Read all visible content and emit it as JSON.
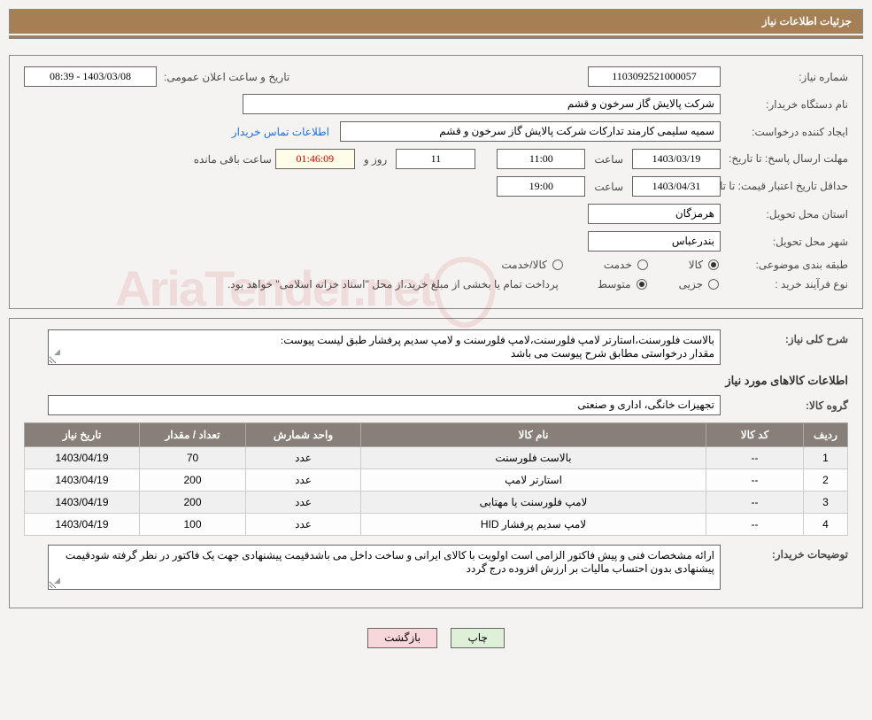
{
  "header": {
    "title": "جزئیات اطلاعات نیاز"
  },
  "need": {
    "number_label": "شماره نیاز:",
    "number": "1103092521000057",
    "announce_label": "تاریخ و ساعت اعلان عمومی:",
    "announce": "1403/03/08 - 08:39",
    "buyer_org_label": "نام دستگاه خریدار:",
    "buyer_org": "شرکت پالایش گاز سرخون و قشم",
    "requester_label": "ایجاد کننده درخواست:",
    "requester": "سمیه سلیمی کارمند تدارکات شرکت پالایش گاز سرخون و قشم",
    "contact_link": "اطلاعات تماس خریدار",
    "reply_deadline_label": "مهلت ارسال پاسخ:  تا تاریخ:",
    "reply_date": "1403/03/19",
    "time_label": "ساعت",
    "reply_time": "11:00",
    "days": "11",
    "days_label": "روز و",
    "countdown": "01:46:09",
    "countdown_label": "ساعت باقی مانده",
    "price_validity_label": "حداقل تاریخ اعتبار قیمت: تا تاریخ:",
    "price_date": "1403/04/31",
    "price_time": "19:00",
    "province_label": "استان محل تحویل:",
    "province": "هرمزگان",
    "city_label": "شهر محل تحویل:",
    "city": "بندرعباس",
    "category_label": "طبقه بندی موضوعی:",
    "cat_opt1": "کالا",
    "cat_opt2": "خدمت",
    "cat_opt3": "کالا/خدمت",
    "purchase_type_label": "نوع فرآیند خرید :",
    "pt_opt1": "جزیی",
    "pt_opt2": "متوسط",
    "purchase_note": "پرداخت تمام یا بخشی از مبلغ خرید،از محل \"اسناد خزانه اسلامی\" خواهد بود."
  },
  "desc": {
    "overall_label": "شرح کلی نیاز:",
    "overall_text": "بالاست فلورسنت،استارتر لامپ فلورسنت،لامپ فلورسنت و لامپ سدیم پرفشار طبق لیست پیوست:\nمقدار درخواستی مطابق شرح پیوست می باشد",
    "items_title": "اطلاعات کالاهای مورد نیاز",
    "group_label": "گروه کالا:",
    "group_value": "تجهیزات خانگی، اداری و صنعتی",
    "buyer_notes_label": "توضیحات خریدار:",
    "buyer_notes": "ارائه مشخصات فنی و پیش فاکتور الزامی است اولویت با کالای ایرانی و ساخت داخل می باشدقیمت پیشنهادی جهت یک فاکتور در نظر گرفته شودقیمت پیشنهادی بدون احتساب مالیات بر ارزش افزوده درج گردد"
  },
  "table": {
    "headers": [
      "ردیف",
      "کد کالا",
      "نام کالا",
      "واحد شمارش",
      "تعداد / مقدار",
      "تاریخ نیاز"
    ],
    "rows": [
      [
        "1",
        "--",
        "بالاست فلورسنت",
        "عدد",
        "70",
        "1403/04/19"
      ],
      [
        "2",
        "--",
        "استارتر لامپ",
        "عدد",
        "200",
        "1403/04/19"
      ],
      [
        "3",
        "--",
        "لامپ فلورسنت یا مهتابی",
        "عدد",
        "200",
        "1403/04/19"
      ],
      [
        "4",
        "--",
        "لامپ سدیم پرفشار HID",
        "عدد",
        "100",
        "1403/04/19"
      ]
    ]
  },
  "buttons": {
    "print": "چاپ",
    "back": "بازگشت"
  },
  "watermark": "AriaTender.net"
}
